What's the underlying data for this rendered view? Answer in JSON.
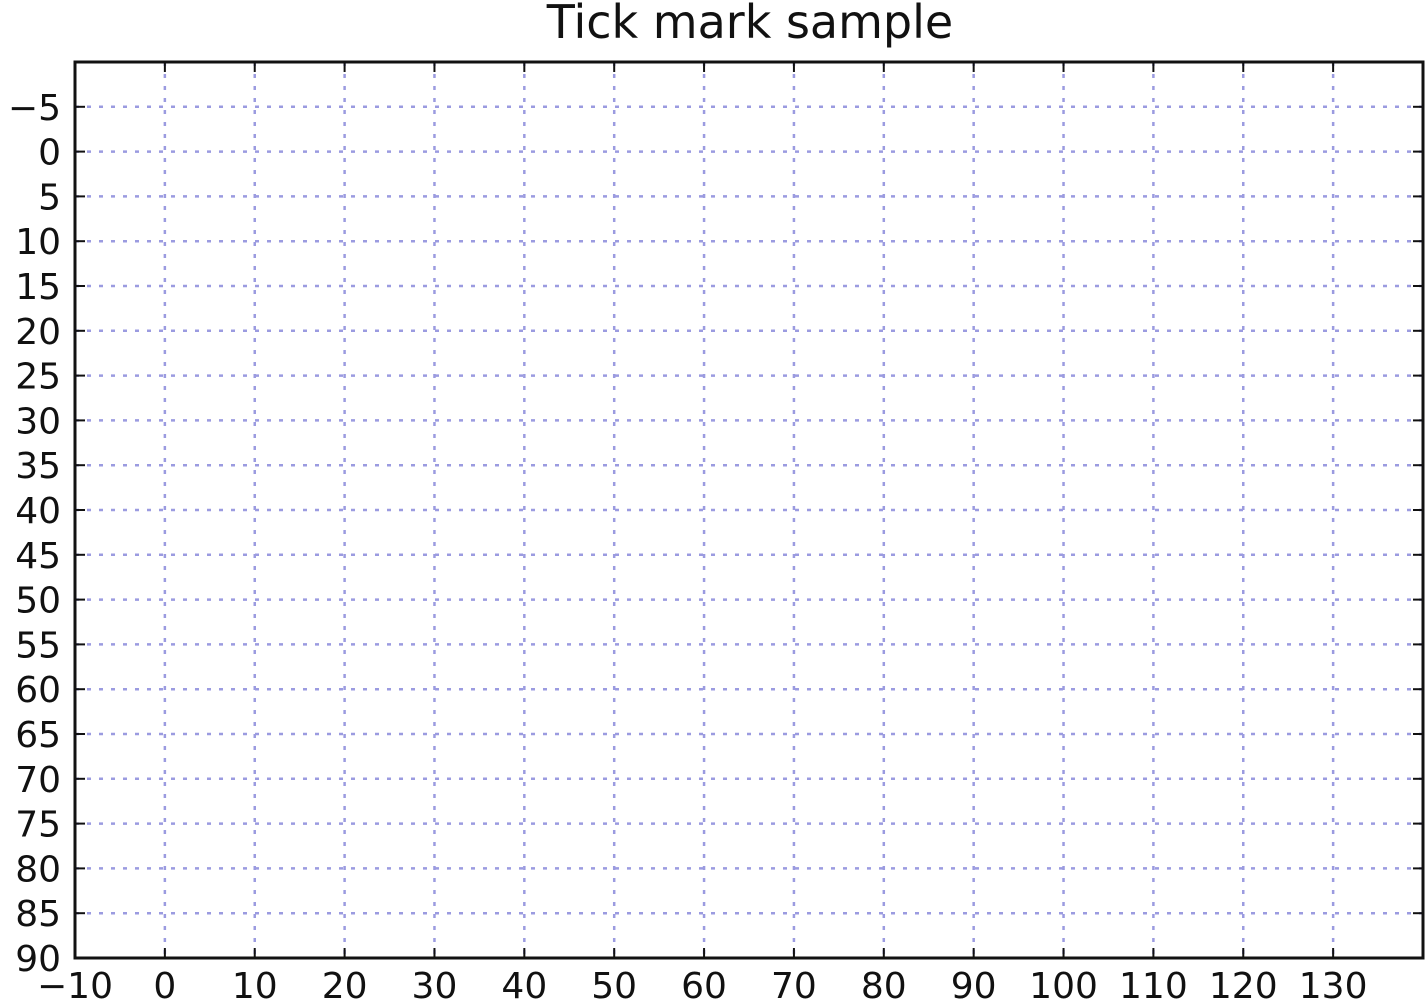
{
  "chart_data": {
    "type": "scatter",
    "title": "Tick mark sample",
    "xlabel": "",
    "ylabel": "",
    "xlim": [
      -10,
      140
    ],
    "ylim": [
      90,
      -10
    ],
    "y_inverted": true,
    "xticks": [
      -10,
      0,
      10,
      20,
      30,
      40,
      50,
      60,
      70,
      80,
      90,
      100,
      110,
      120,
      130
    ],
    "xtick_labels": [
      "−10",
      "0",
      "10",
      "20",
      "30",
      "40",
      "50",
      "60",
      "70",
      "80",
      "90",
      "100",
      "110",
      "120",
      "130"
    ],
    "yticks": [
      -5,
      0,
      5,
      10,
      15,
      20,
      25,
      30,
      35,
      40,
      45,
      50,
      55,
      60,
      65,
      70,
      75,
      80,
      85,
      90
    ],
    "ytick_labels": [
      "−5",
      "0",
      "5",
      "10",
      "15",
      "20",
      "25",
      "30",
      "35",
      "40",
      "45",
      "50",
      "55",
      "60",
      "65",
      "70",
      "75",
      "80",
      "85",
      "90"
    ],
    "grid": true,
    "grid_color": "#9b9be0",
    "series": [],
    "legend": "none"
  }
}
